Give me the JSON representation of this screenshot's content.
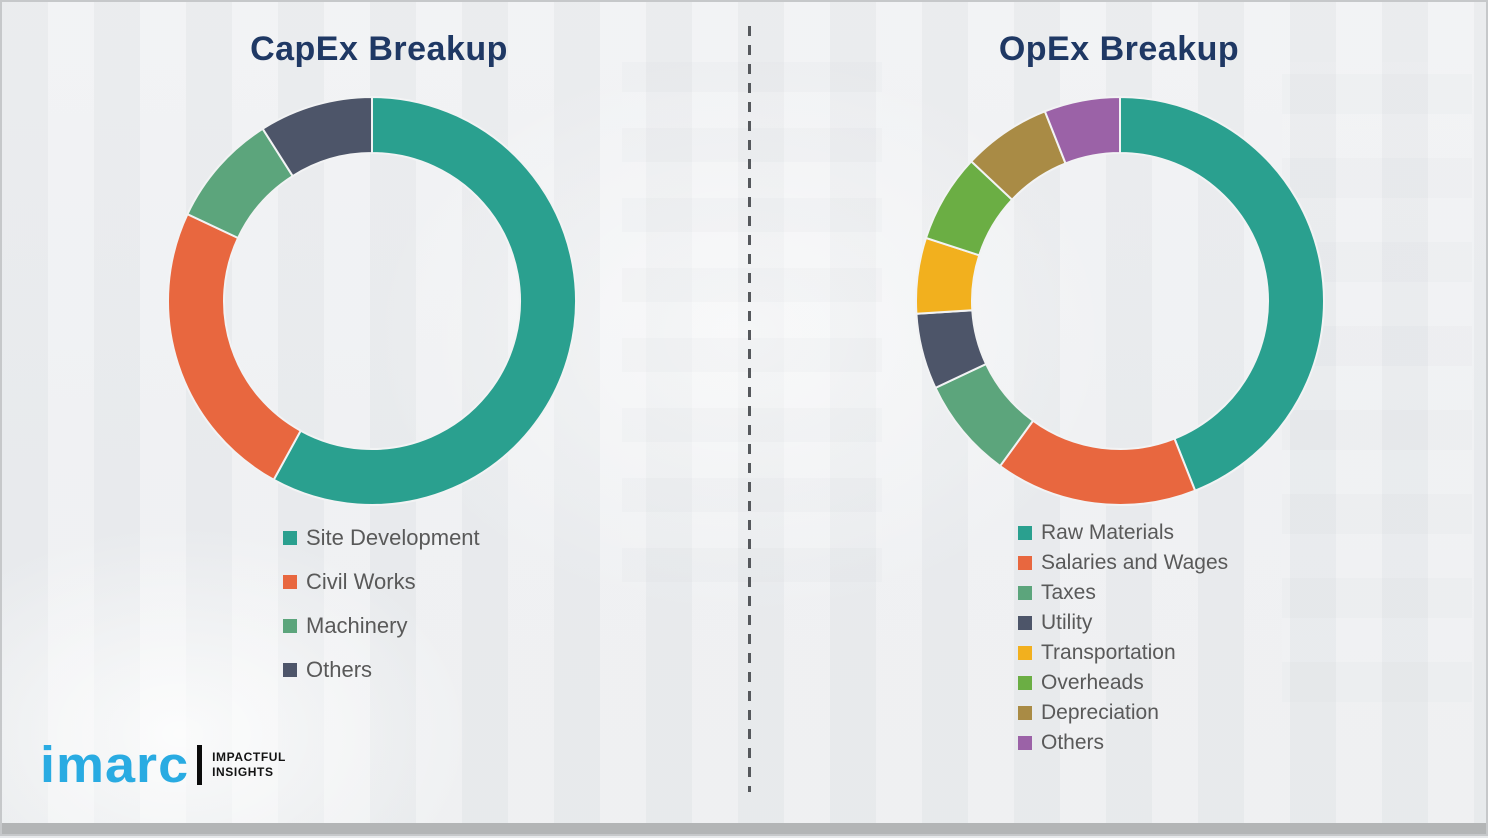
{
  "page": {
    "background_color": "#edeff1",
    "divider_style": "vertical-dashed",
    "divider_color": "#55585c",
    "title_color": "#1f3864",
    "legend_text_color": "#595959"
  },
  "logo": {
    "brand": "imarc",
    "brand_color": "#29abe2",
    "tagline_line1": "IMPACTFUL",
    "tagline_line2": "INSIGHTS"
  },
  "chart_data": [
    {
      "type": "pie",
      "donut": true,
      "title": "CapEx Breakup",
      "center": [
        370,
        299
      ],
      "outer_radius": 204,
      "inner_radius": 148,
      "start_angle_deg": 0,
      "direction": "clockwise",
      "legend_position": "below-left",
      "segments": [
        {
          "label": "Site Development",
          "value": 58,
          "color": "#2aa08f"
        },
        {
          "label": "Civil Works",
          "value": 24,
          "color": "#e8673f"
        },
        {
          "label": "Machinery",
          "value": 9,
          "color": "#5ca57c"
        },
        {
          "label": "Others",
          "value": 9,
          "color": "#4d5569"
        }
      ]
    },
    {
      "type": "pie",
      "donut": true,
      "title": "OpEx Breakup",
      "center": [
        1118,
        299
      ],
      "outer_radius": 204,
      "inner_radius": 148,
      "start_angle_deg": 0,
      "direction": "clockwise",
      "legend_position": "below-left",
      "segments": [
        {
          "label": "Raw Materials",
          "value": 44,
          "color": "#2aa08f"
        },
        {
          "label": "Salaries and Wages",
          "value": 16,
          "color": "#e8673f"
        },
        {
          "label": "Taxes",
          "value": 8,
          "color": "#5ca57c"
        },
        {
          "label": "Utility",
          "value": 6,
          "color": "#4d5569"
        },
        {
          "label": "Transportation",
          "value": 6,
          "color": "#f2b01e"
        },
        {
          "label": "Overheads",
          "value": 7,
          "color": "#6bae44"
        },
        {
          "label": "Depreciation",
          "value": 7,
          "color": "#a98b45"
        },
        {
          "label": "Others",
          "value": 6,
          "color": "#9b62a7"
        }
      ]
    }
  ]
}
